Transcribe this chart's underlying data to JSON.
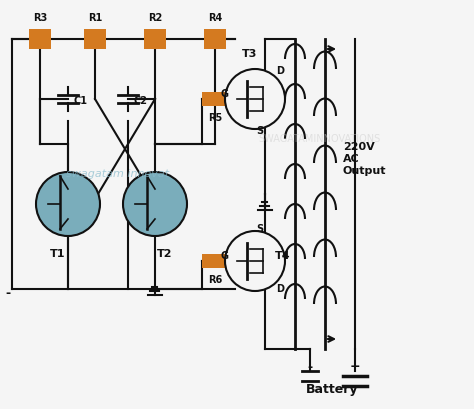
{
  "bg_color": "#f5f5f5",
  "line_color": "#111111",
  "resistor_color": "#d47a20",
  "transistor_fill": "#7aadbb",
  "text_color": "#111111",
  "watermark1": "swagatam innovat",
  "watermark2": "SWAGATAMINNOVATIONS",
  "watermark1_color": "#88bbcc",
  "watermark2_color": "#cccccc",
  "label_battery": "Battery",
  "label_output": "220V\nAC\nOutput",
  "label_minus_left": "-",
  "label_minus_bat": "-",
  "label_plus_bat": "+",
  "component_labels": [
    "R3",
    "R1",
    "R2",
    "R4",
    "C1",
    "C2",
    "R5",
    "R6",
    "T1",
    "T2",
    "T3",
    "T4"
  ],
  "terminal_labels": [
    "D",
    "G",
    "S",
    "D",
    "G",
    "S"
  ]
}
